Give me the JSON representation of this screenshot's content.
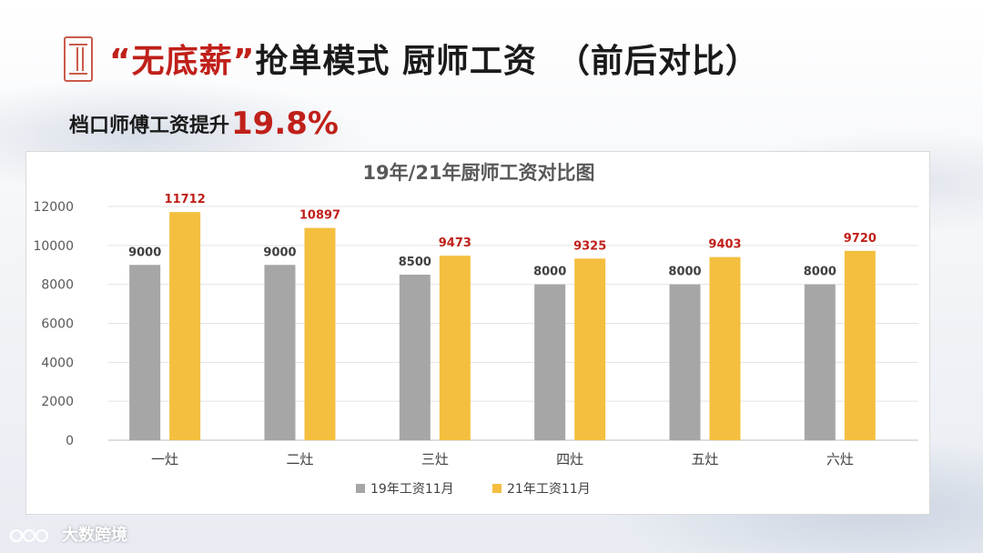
{
  "slide": {
    "title_quote_open": "“",
    "title_highlight": "无底薪",
    "title_quote_close": "”",
    "title_rest": "抢单模式 厨师工资",
    "title_paren": "（前后对比）",
    "subtitle_text": "档口师傅工资提升",
    "subtitle_pct": "19.8%",
    "watermark_text": "大数跨境",
    "colors": {
      "accent": "#c0201a",
      "seal": "#c95a4a"
    }
  },
  "chart_data": {
    "type": "bar",
    "title": "19年/21年厨师工资对比图",
    "categories": [
      "一灶",
      "二灶",
      "三灶",
      "四灶",
      "五灶",
      "六灶"
    ],
    "series": [
      {
        "name": "19年工资11月",
        "values": [
          9000,
          9000,
          8500,
          8000,
          8000,
          8000
        ],
        "color": "#a6a6a6",
        "label_color": "#404040"
      },
      {
        "name": "21年工资11月",
        "values": [
          11712,
          10897,
          9473,
          9325,
          9403,
          9720
        ],
        "color": "#f4bf3f",
        "label_color": "#c0201a"
      }
    ],
    "ylim": [
      0,
      12000
    ],
    "yticks": [
      0,
      2000,
      4000,
      6000,
      8000,
      10000,
      12000
    ],
    "grid": true,
    "legend": "bottom"
  }
}
